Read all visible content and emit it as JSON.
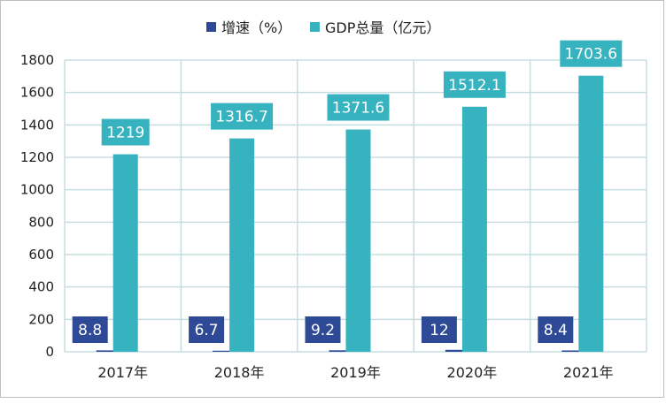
{
  "chart_data": {
    "type": "bar",
    "categories": [
      "2017年",
      "2018年",
      "2019年",
      "2020年",
      "2021年"
    ],
    "series": [
      {
        "name": "增速（%）",
        "values": [
          8.8,
          6.7,
          9.2,
          12,
          8.4
        ],
        "labels": [
          "8.8",
          "6.7",
          "9.2",
          "12",
          "8.4"
        ],
        "color": "#2e4a96"
      },
      {
        "name": "GDP总量（亿元）",
        "values": [
          1219,
          1316.7,
          1371.6,
          1512.1,
          1703.6
        ],
        "labels": [
          "1219",
          "1316.7",
          "1371.6",
          "1512.1",
          "1703.6"
        ],
        "color": "#37b3c0"
      }
    ],
    "y_ticks": [
      "0",
      "200",
      "400",
      "600",
      "800",
      "1000",
      "1200",
      "1400",
      "1600",
      "1800"
    ],
    "ylim": [
      0,
      1800
    ],
    "grid": true,
    "legend_position": "top-center",
    "title": "",
    "xlabel": "",
    "ylabel": ""
  }
}
